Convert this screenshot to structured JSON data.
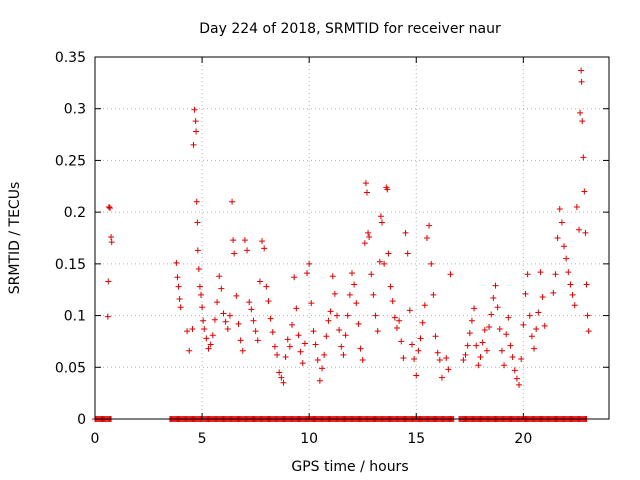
{
  "chart_data": {
    "type": "scatter",
    "title": "Day 224 of 2018, SRMTID for receiver naur",
    "xlabel": "GPS time / hours",
    "ylabel": "SRMTID / TECUs",
    "xlim": [
      0,
      24
    ],
    "ylim": [
      0,
      0.35
    ],
    "x_ticks": [
      0,
      5,
      10,
      15,
      20
    ],
    "x_tick_labels": [
      "0",
      "5",
      "10",
      "15",
      "20"
    ],
    "y_ticks": [
      0,
      0.05,
      0.1,
      0.15,
      0.2,
      0.25,
      0.3,
      0.35
    ],
    "y_tick_labels": [
      "0",
      "0.05",
      "0.1",
      "0.15",
      "0.2",
      "0.25",
      "0.3",
      "0.35"
    ],
    "grid": true,
    "series": [
      {
        "name": "SRMTID",
        "color": "#e00000",
        "marker": "plus",
        "points": [
          [
            0.6,
            0.099
          ],
          [
            0.62,
            0.133
          ],
          [
            0.65,
            0.205
          ],
          [
            0.7,
            0.204
          ],
          [
            0.75,
            0.176
          ],
          [
            0.78,
            0.171
          ],
          [
            3.8,
            0.151
          ],
          [
            3.85,
            0.137
          ],
          [
            3.9,
            0.128
          ],
          [
            3.95,
            0.116
          ],
          [
            4.0,
            0.108
          ],
          [
            4.3,
            0.085
          ],
          [
            4.4,
            0.066
          ],
          [
            4.55,
            0.087
          ],
          [
            4.6,
            0.265
          ],
          [
            4.65,
            0.299
          ],
          [
            4.7,
            0.288
          ],
          [
            4.72,
            0.278
          ],
          [
            4.75,
            0.21
          ],
          [
            4.78,
            0.19
          ],
          [
            4.8,
            0.163
          ],
          [
            4.85,
            0.145
          ],
          [
            4.9,
            0.128
          ],
          [
            4.95,
            0.12
          ],
          [
            5.0,
            0.108
          ],
          [
            5.05,
            0.095
          ],
          [
            5.1,
            0.087
          ],
          [
            5.2,
            0.078
          ],
          [
            5.3,
            0.068
          ],
          [
            5.4,
            0.072
          ],
          [
            5.5,
            0.081
          ],
          [
            5.6,
            0.096
          ],
          [
            5.7,
            0.113
          ],
          [
            5.8,
            0.138
          ],
          [
            5.9,
            0.126
          ],
          [
            6.0,
            0.102
          ],
          [
            6.1,
            0.094
          ],
          [
            6.2,
            0.087
          ],
          [
            6.3,
            0.1
          ],
          [
            6.4,
            0.21
          ],
          [
            6.45,
            0.173
          ],
          [
            6.5,
            0.16
          ],
          [
            6.6,
            0.119
          ],
          [
            6.7,
            0.092
          ],
          [
            6.8,
            0.076
          ],
          [
            6.9,
            0.066
          ],
          [
            7.0,
            0.173
          ],
          [
            7.1,
            0.163
          ],
          [
            7.2,
            0.113
          ],
          [
            7.3,
            0.106
          ],
          [
            7.4,
            0.095
          ],
          [
            7.5,
            0.085
          ],
          [
            7.6,
            0.076
          ],
          [
            7.7,
            0.133
          ],
          [
            7.8,
            0.172
          ],
          [
            7.9,
            0.165
          ],
          [
            8.0,
            0.128
          ],
          [
            8.1,
            0.114
          ],
          [
            8.2,
            0.097
          ],
          [
            8.3,
            0.084
          ],
          [
            8.4,
            0.07
          ],
          [
            8.5,
            0.062
          ],
          [
            8.6,
            0.045
          ],
          [
            8.7,
            0.04
          ],
          [
            8.8,
            0.035
          ],
          [
            8.9,
            0.06
          ],
          [
            9.0,
            0.077
          ],
          [
            9.1,
            0.07
          ],
          [
            9.2,
            0.091
          ],
          [
            9.3,
            0.137
          ],
          [
            9.4,
            0.107
          ],
          [
            9.5,
            0.081
          ],
          [
            9.6,
            0.065
          ],
          [
            9.7,
            0.054
          ],
          [
            9.8,
            0.073
          ],
          [
            9.9,
            0.141
          ],
          [
            10.0,
            0.15
          ],
          [
            10.1,
            0.112
          ],
          [
            10.2,
            0.085
          ],
          [
            10.3,
            0.072
          ],
          [
            10.4,
            0.057
          ],
          [
            10.5,
            0.037
          ],
          [
            10.6,
            0.049
          ],
          [
            10.7,
            0.062
          ],
          [
            10.8,
            0.08
          ],
          [
            10.9,
            0.095
          ],
          [
            11.0,
            0.104
          ],
          [
            11.1,
            0.138
          ],
          [
            11.2,
            0.121
          ],
          [
            11.3,
            0.1
          ],
          [
            11.4,
            0.086
          ],
          [
            11.5,
            0.07
          ],
          [
            11.6,
            0.062
          ],
          [
            11.7,
            0.081
          ],
          [
            11.8,
            0.1
          ],
          [
            11.9,
            0.12
          ],
          [
            12.0,
            0.141
          ],
          [
            12.1,
            0.13
          ],
          [
            12.2,
            0.112
          ],
          [
            12.3,
            0.092
          ],
          [
            12.4,
            0.068
          ],
          [
            12.5,
            0.057
          ],
          [
            12.6,
            0.17
          ],
          [
            12.65,
            0.228
          ],
          [
            12.7,
            0.219
          ],
          [
            12.75,
            0.18
          ],
          [
            12.8,
            0.176
          ],
          [
            12.9,
            0.14
          ],
          [
            13.0,
            0.12
          ],
          [
            13.1,
            0.1
          ],
          [
            13.2,
            0.085
          ],
          [
            13.3,
            0.152
          ],
          [
            13.35,
            0.196
          ],
          [
            13.4,
            0.19
          ],
          [
            13.5,
            0.15
          ],
          [
            13.6,
            0.224
          ],
          [
            13.65,
            0.222
          ],
          [
            13.7,
            0.16
          ],
          [
            13.8,
            0.128
          ],
          [
            13.9,
            0.114
          ],
          [
            14.0,
            0.098
          ],
          [
            14.1,
            0.088
          ],
          [
            14.2,
            0.095
          ],
          [
            14.3,
            0.075
          ],
          [
            14.4,
            0.059
          ],
          [
            14.5,
            0.18
          ],
          [
            14.6,
            0.16
          ],
          [
            14.7,
            0.105
          ],
          [
            14.8,
            0.072
          ],
          [
            14.9,
            0.058
          ],
          [
            15.0,
            0.042
          ],
          [
            15.1,
            0.066
          ],
          [
            15.2,
            0.078
          ],
          [
            15.3,
            0.093
          ],
          [
            15.4,
            0.11
          ],
          [
            15.5,
            0.175
          ],
          [
            15.6,
            0.187
          ],
          [
            15.7,
            0.15
          ],
          [
            15.8,
            0.12
          ],
          [
            15.9,
            0.08
          ],
          [
            16.0,
            0.064
          ],
          [
            16.1,
            0.057
          ],
          [
            16.2,
            0.04
          ],
          [
            16.4,
            0.059
          ],
          [
            16.5,
            0.048
          ],
          [
            16.6,
            0.14
          ],
          [
            17.2,
            0.057
          ],
          [
            17.3,
            0.062
          ],
          [
            17.4,
            0.071
          ],
          [
            17.5,
            0.083
          ],
          [
            17.6,
            0.095
          ],
          [
            17.7,
            0.107
          ],
          [
            17.8,
            0.071
          ],
          [
            17.9,
            0.052
          ],
          [
            18.0,
            0.06
          ],
          [
            18.1,
            0.074
          ],
          [
            18.2,
            0.086
          ],
          [
            18.3,
            0.066
          ],
          [
            18.4,
            0.089
          ],
          [
            18.5,
            0.101
          ],
          [
            18.6,
            0.117
          ],
          [
            18.7,
            0.129
          ],
          [
            18.8,
            0.108
          ],
          [
            18.9,
            0.087
          ],
          [
            19.0,
            0.066
          ],
          [
            19.1,
            0.052
          ],
          [
            19.2,
            0.082
          ],
          [
            19.3,
            0.098
          ],
          [
            19.4,
            0.071
          ],
          [
            19.5,
            0.06
          ],
          [
            19.6,
            0.047
          ],
          [
            19.7,
            0.039
          ],
          [
            19.8,
            0.033
          ],
          [
            19.9,
            0.058
          ],
          [
            20.0,
            0.091
          ],
          [
            20.1,
            0.121
          ],
          [
            20.2,
            0.14
          ],
          [
            20.3,
            0.1
          ],
          [
            20.4,
            0.08
          ],
          [
            20.5,
            0.068
          ],
          [
            20.6,
            0.087
          ],
          [
            20.7,
            0.103
          ],
          [
            20.8,
            0.142
          ],
          [
            20.9,
            0.118
          ],
          [
            21.0,
            0.09
          ],
          [
            21.4,
            0.122
          ],
          [
            21.5,
            0.14
          ],
          [
            21.6,
            0.175
          ],
          [
            21.7,
            0.203
          ],
          [
            21.8,
            0.19
          ],
          [
            21.9,
            0.167
          ],
          [
            22.0,
            0.155
          ],
          [
            22.1,
            0.142
          ],
          [
            22.2,
            0.13
          ],
          [
            22.3,
            0.12
          ],
          [
            22.4,
            0.11
          ],
          [
            22.5,
            0.205
          ],
          [
            22.6,
            0.183
          ],
          [
            22.65,
            0.296
          ],
          [
            22.7,
            0.337
          ],
          [
            22.72,
            0.326
          ],
          [
            22.75,
            0.288
          ],
          [
            22.8,
            0.253
          ],
          [
            22.85,
            0.22
          ],
          [
            22.9,
            0.18
          ],
          [
            22.95,
            0.13
          ],
          [
            23.0,
            0.1
          ],
          [
            23.05,
            0.085
          ]
        ]
      }
    ],
    "zero_band_ranges": [
      [
        0.0,
        0.8
      ],
      [
        3.5,
        16.8
      ],
      [
        17.0,
        23.0
      ]
    ]
  }
}
